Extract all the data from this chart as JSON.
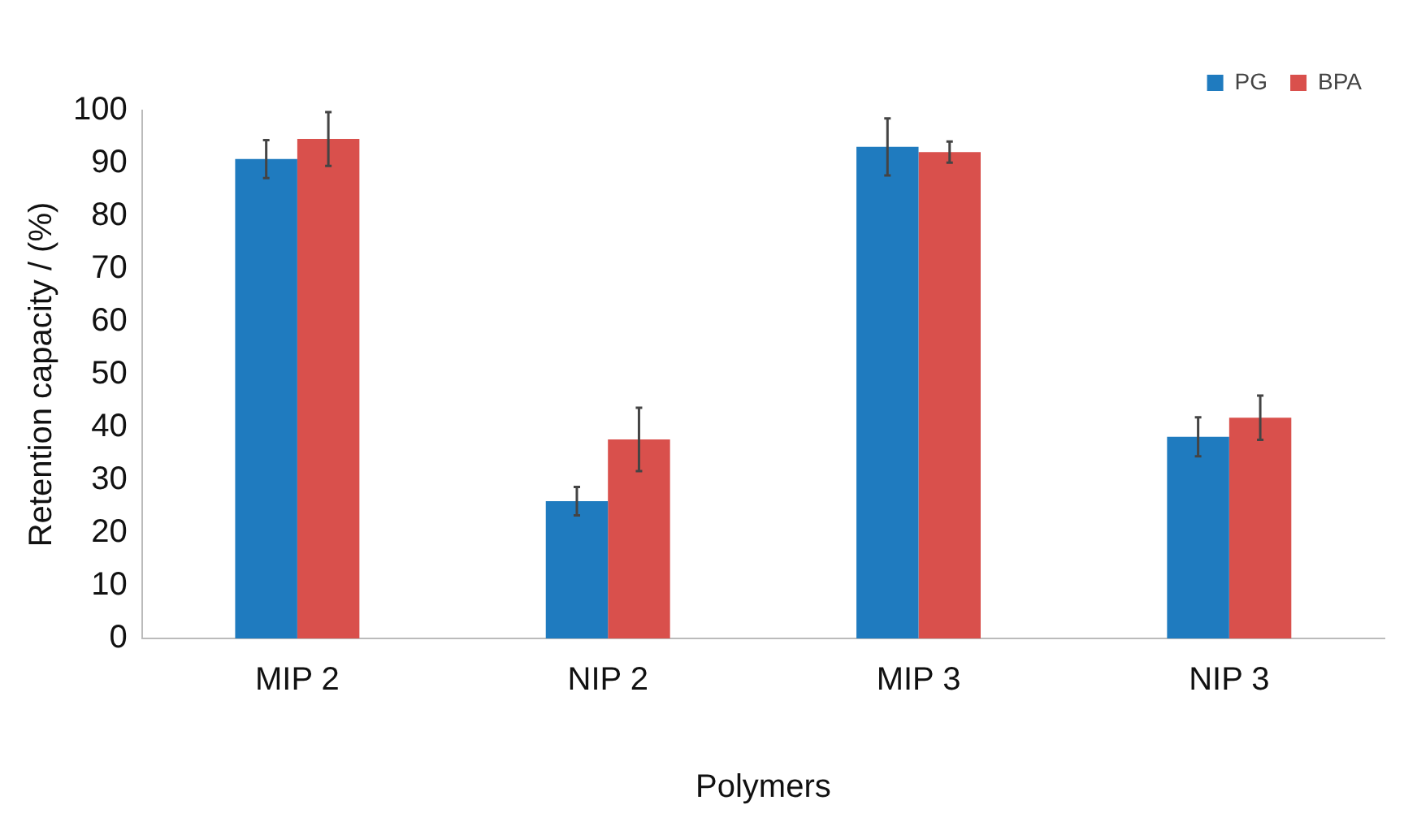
{
  "chart_data": {
    "type": "bar",
    "xlabel": "Polymers",
    "ylabel": "Retention capacity / (%)",
    "categories": [
      "MIP 2",
      "NIP 2",
      "MIP 3",
      "NIP 3"
    ],
    "series": [
      {
        "name": "PG",
        "color": "#1f7bbf",
        "values": [
          90.8,
          26.0,
          93.1,
          38.2
        ],
        "errors": [
          3.6,
          2.7,
          5.4,
          3.7
        ]
      },
      {
        "name": "BPA",
        "color": "#d9504c",
        "values": [
          94.6,
          37.7,
          92.1,
          41.8
        ],
        "errors": [
          5.1,
          6,
          2,
          4.2
        ]
      }
    ],
    "ylim": [
      0,
      100
    ],
    "yticks": [
      0,
      10,
      20,
      30,
      40,
      50,
      60,
      70,
      80,
      90,
      100
    ],
    "grid": false,
    "legend": "top right"
  }
}
